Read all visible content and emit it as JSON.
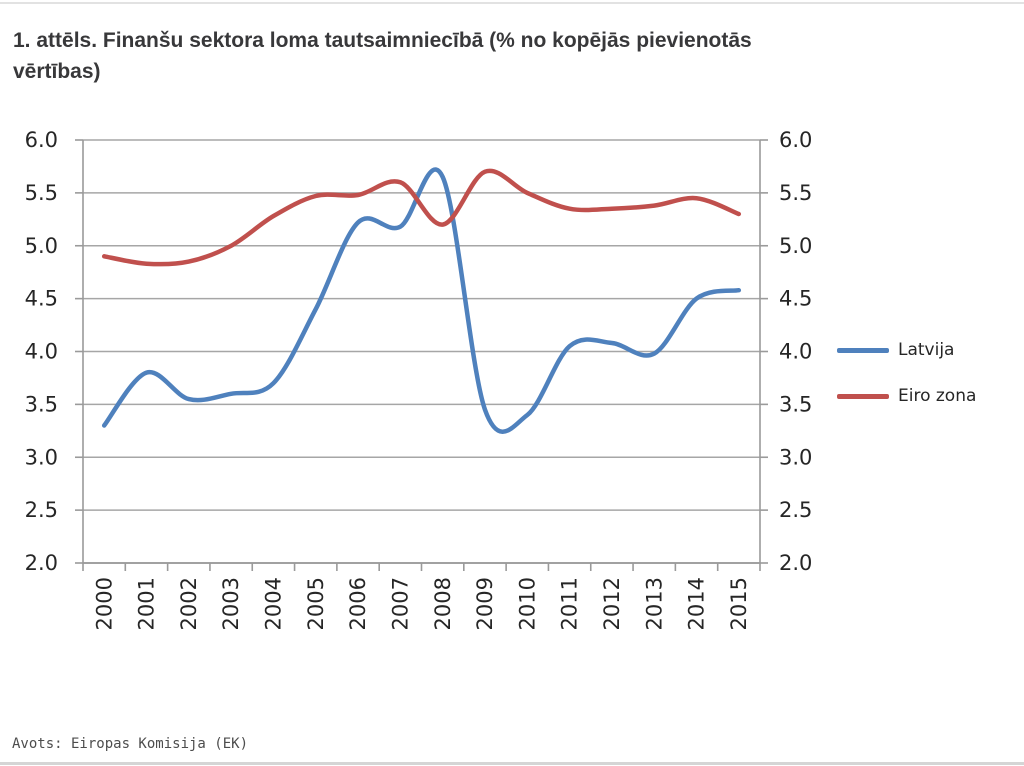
{
  "title": {
    "line1": "1. attēls. Finanšu sektora loma tautsaimniecībā (% no kopējās pievienotās",
    "line2": "vērtības)"
  },
  "source_note": "Avots: Eiropas Komisija (EK)",
  "chart_data": {
    "type": "line",
    "x": [
      "2000",
      "2001",
      "2002",
      "2003",
      "2004",
      "2005",
      "2006",
      "2007",
      "2008",
      "2009",
      "2010",
      "2011",
      "2012",
      "2013",
      "2014",
      "2015"
    ],
    "series": [
      {
        "name": "Latvija",
        "color": "#4F81BD",
        "values": [
          3.3,
          3.8,
          3.55,
          3.6,
          3.7,
          4.4,
          5.22,
          5.18,
          5.65,
          3.45,
          3.4,
          4.05,
          4.08,
          3.98,
          4.5,
          4.58
        ]
      },
      {
        "name": "Eiro zona",
        "color": "#C0504D",
        "values": [
          4.9,
          4.83,
          4.85,
          5.0,
          5.28,
          5.47,
          5.48,
          5.6,
          5.2,
          5.7,
          5.5,
          5.35,
          5.35,
          5.38,
          5.45,
          5.3
        ]
      }
    ],
    "ylim": [
      2.0,
      6.0
    ],
    "ytick_step": 0.5,
    "ytick_labels": [
      "2.0",
      "2.5",
      "3.0",
      "3.5",
      "4.0",
      "4.5",
      "5.0",
      "5.5",
      "6.0"
    ],
    "dual_y_axis": true,
    "grid": true,
    "smoothed_lines": true,
    "legend_position": "right",
    "colors": {
      "grid": "#A6A6A6",
      "axis": "#9A9A9A",
      "tick_label": "#262626"
    },
    "tick_label_font_px": 21
  }
}
